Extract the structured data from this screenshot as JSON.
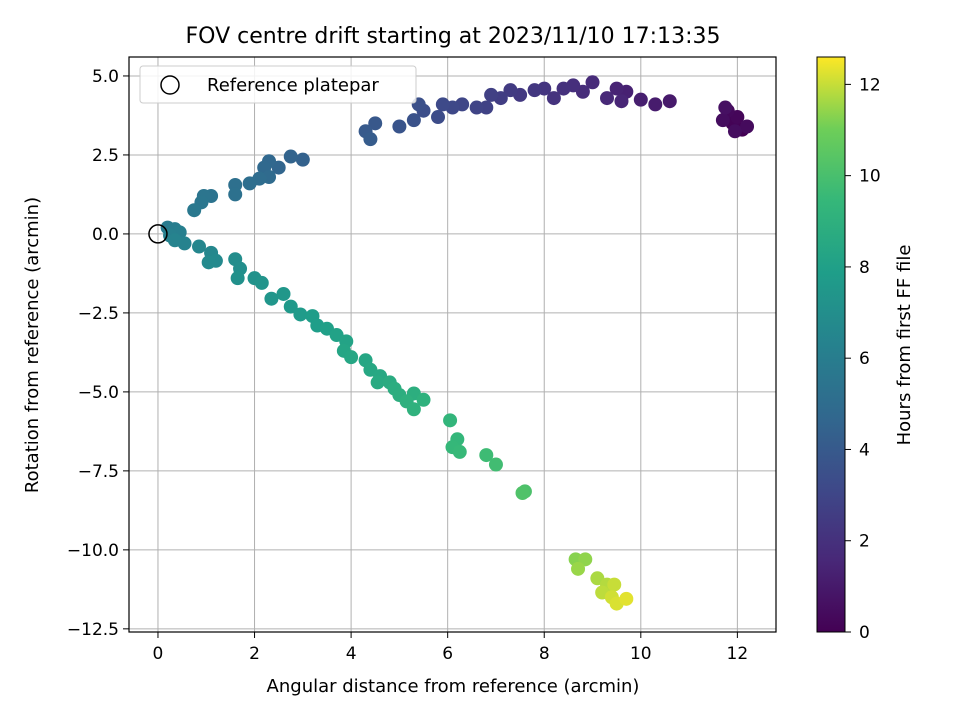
{
  "chart_data": {
    "type": "scatter",
    "title": "FOV centre drift starting at 2023/11/10 17:13:35",
    "xlabel": "Angular distance from reference (arcmin)",
    "ylabel": "Rotation from reference (arcmin)",
    "xlim": [
      -0.6,
      12.8
    ],
    "ylim": [
      -12.6,
      5.6
    ],
    "x_ticks": [
      0,
      2,
      4,
      6,
      8,
      10,
      12
    ],
    "y_ticks": [
      5.0,
      2.5,
      0.0,
      -2.5,
      -5.0,
      -7.5,
      -10.0,
      -12.5
    ],
    "x_tick_labels": [
      "0",
      "2",
      "4",
      "6",
      "8",
      "10",
      "12"
    ],
    "y_tick_labels": [
      "5.0",
      "2.5",
      "0.0",
      "−2.5",
      "−5.0",
      "−7.5",
      "−10.0",
      "−12.5"
    ],
    "grid": true,
    "legend": {
      "position": "top-left",
      "label": "Reference platepar",
      "marker": "open-circle"
    },
    "reference_point": {
      "x": 0,
      "y": 0
    },
    "colorbar": {
      "label": "Hours from first FF file",
      "range": [
        0,
        12.6
      ],
      "ticks": [
        0,
        2,
        4,
        6,
        8,
        10,
        12
      ],
      "tick_labels": [
        "0",
        "2",
        "4",
        "6",
        "8",
        "10",
        "12"
      ],
      "colormap": "viridis"
    },
    "points": [
      {
        "x": 12.1,
        "y": 3.3,
        "t": 0.0
      },
      {
        "x": 11.9,
        "y": 3.5,
        "t": 0.1
      },
      {
        "x": 12.0,
        "y": 3.7,
        "t": 0.2
      },
      {
        "x": 11.8,
        "y": 3.9,
        "t": 0.3
      },
      {
        "x": 12.2,
        "y": 3.4,
        "t": 0.4
      },
      {
        "x": 11.7,
        "y": 3.6,
        "t": 0.5
      },
      {
        "x": 11.95,
        "y": 3.25,
        "t": 0.5
      },
      {
        "x": 11.75,
        "y": 4.0,
        "t": 0.6
      },
      {
        "x": 10.6,
        "y": 4.2,
        "t": 1.0
      },
      {
        "x": 10.3,
        "y": 4.1,
        "t": 1.1
      },
      {
        "x": 10.0,
        "y": 4.25,
        "t": 1.2
      },
      {
        "x": 9.7,
        "y": 4.5,
        "t": 1.3
      },
      {
        "x": 9.5,
        "y": 4.6,
        "t": 1.4
      },
      {
        "x": 9.6,
        "y": 4.2,
        "t": 1.5
      },
      {
        "x": 9.3,
        "y": 4.3,
        "t": 1.6
      },
      {
        "x": 9.0,
        "y": 4.8,
        "t": 1.7
      },
      {
        "x": 8.8,
        "y": 4.5,
        "t": 1.8
      },
      {
        "x": 8.6,
        "y": 4.7,
        "t": 1.9
      },
      {
        "x": 8.4,
        "y": 4.6,
        "t": 2.0
      },
      {
        "x": 8.2,
        "y": 4.3,
        "t": 2.1
      },
      {
        "x": 8.0,
        "y": 4.6,
        "t": 2.2
      },
      {
        "x": 7.8,
        "y": 4.55,
        "t": 2.3
      },
      {
        "x": 7.5,
        "y": 4.4,
        "t": 2.4
      },
      {
        "x": 7.3,
        "y": 4.55,
        "t": 2.5
      },
      {
        "x": 7.1,
        "y": 4.3,
        "t": 2.6
      },
      {
        "x": 6.9,
        "y": 4.4,
        "t": 2.7
      },
      {
        "x": 6.8,
        "y": 4.0,
        "t": 2.8
      },
      {
        "x": 6.6,
        "y": 4.0,
        "t": 2.9
      },
      {
        "x": 6.3,
        "y": 4.1,
        "t": 3.0
      },
      {
        "x": 6.1,
        "y": 4.0,
        "t": 3.1
      },
      {
        "x": 5.9,
        "y": 4.1,
        "t": 3.2
      },
      {
        "x": 5.8,
        "y": 3.7,
        "t": 3.3
      },
      {
        "x": 5.5,
        "y": 3.9,
        "t": 3.4
      },
      {
        "x": 5.4,
        "y": 4.1,
        "t": 3.5
      },
      {
        "x": 5.3,
        "y": 3.6,
        "t": 3.6
      },
      {
        "x": 5.0,
        "y": 3.4,
        "t": 3.7
      },
      {
        "x": 4.5,
        "y": 3.5,
        "t": 3.9
      },
      {
        "x": 4.3,
        "y": 3.25,
        "t": 4.0
      },
      {
        "x": 4.4,
        "y": 3.0,
        "t": 4.1
      },
      {
        "x": 3.0,
        "y": 2.35,
        "t": 4.4
      },
      {
        "x": 2.75,
        "y": 2.45,
        "t": 4.5
      },
      {
        "x": 2.5,
        "y": 2.1,
        "t": 4.6
      },
      {
        "x": 2.3,
        "y": 2.3,
        "t": 4.7
      },
      {
        "x": 2.2,
        "y": 2.1,
        "t": 4.8
      },
      {
        "x": 2.3,
        "y": 1.8,
        "t": 4.9
      },
      {
        "x": 2.1,
        "y": 1.75,
        "t": 5.0
      },
      {
        "x": 1.9,
        "y": 1.6,
        "t": 5.1
      },
      {
        "x": 1.6,
        "y": 1.55,
        "t": 5.2
      },
      {
        "x": 1.6,
        "y": 1.25,
        "t": 5.3
      },
      {
        "x": 1.1,
        "y": 1.2,
        "t": 5.4
      },
      {
        "x": 0.95,
        "y": 1.2,
        "t": 5.5
      },
      {
        "x": 0.9,
        "y": 1.0,
        "t": 5.6
      },
      {
        "x": 0.75,
        "y": 0.75,
        "t": 5.7
      },
      {
        "x": 0.2,
        "y": 0.2,
        "t": 5.9
      },
      {
        "x": 0.35,
        "y": 0.15,
        "t": 6.0
      },
      {
        "x": 0.45,
        "y": 0.05,
        "t": 6.1
      },
      {
        "x": 0.25,
        "y": -0.05,
        "t": 6.2
      },
      {
        "x": 0.55,
        "y": -0.3,
        "t": 6.3
      },
      {
        "x": 0.35,
        "y": -0.2,
        "t": 6.35
      },
      {
        "x": 0.85,
        "y": -0.4,
        "t": 6.5
      },
      {
        "x": 1.1,
        "y": -0.6,
        "t": 6.6
      },
      {
        "x": 1.2,
        "y": -0.85,
        "t": 6.7
      },
      {
        "x": 1.05,
        "y": -0.9,
        "t": 6.75
      },
      {
        "x": 1.6,
        "y": -0.8,
        "t": 6.9
      },
      {
        "x": 1.7,
        "y": -1.1,
        "t": 7.0
      },
      {
        "x": 1.65,
        "y": -1.4,
        "t": 7.1
      },
      {
        "x": 2.0,
        "y": -1.4,
        "t": 7.2
      },
      {
        "x": 2.15,
        "y": -1.55,
        "t": 7.3
      },
      {
        "x": 2.35,
        "y": -2.05,
        "t": 7.4
      },
      {
        "x": 2.6,
        "y": -1.9,
        "t": 7.5
      },
      {
        "x": 2.75,
        "y": -2.3,
        "t": 7.6
      },
      {
        "x": 2.95,
        "y": -2.55,
        "t": 7.7
      },
      {
        "x": 3.2,
        "y": -2.6,
        "t": 7.8
      },
      {
        "x": 3.3,
        "y": -2.9,
        "t": 7.9
      },
      {
        "x": 3.5,
        "y": -3.0,
        "t": 8.0
      },
      {
        "x": 3.7,
        "y": -3.2,
        "t": 8.1
      },
      {
        "x": 3.9,
        "y": -3.4,
        "t": 8.2
      },
      {
        "x": 3.85,
        "y": -3.7,
        "t": 8.3
      },
      {
        "x": 4.0,
        "y": -3.9,
        "t": 8.35
      },
      {
        "x": 4.3,
        "y": -4.0,
        "t": 8.4
      },
      {
        "x": 4.4,
        "y": -4.3,
        "t": 8.45
      },
      {
        "x": 4.6,
        "y": -4.5,
        "t": 8.5
      },
      {
        "x": 4.55,
        "y": -4.7,
        "t": 8.6
      },
      {
        "x": 4.8,
        "y": -4.7,
        "t": 8.7
      },
      {
        "x": 4.9,
        "y": -4.9,
        "t": 8.8
      },
      {
        "x": 5.0,
        "y": -5.1,
        "t": 8.85
      },
      {
        "x": 5.3,
        "y": -5.05,
        "t": 8.9
      },
      {
        "x": 5.15,
        "y": -5.3,
        "t": 9.0
      },
      {
        "x": 5.5,
        "y": -5.25,
        "t": 9.05
      },
      {
        "x": 5.3,
        "y": -5.55,
        "t": 9.1
      },
      {
        "x": 6.05,
        "y": -5.9,
        "t": 9.3
      },
      {
        "x": 6.2,
        "y": -6.5,
        "t": 9.4
      },
      {
        "x": 6.1,
        "y": -6.75,
        "t": 9.45
      },
      {
        "x": 6.25,
        "y": -6.9,
        "t": 9.5
      },
      {
        "x": 6.8,
        "y": -7.0,
        "t": 9.7
      },
      {
        "x": 7.0,
        "y": -7.3,
        "t": 9.8
      },
      {
        "x": 7.6,
        "y": -8.15,
        "t": 10.1
      },
      {
        "x": 7.55,
        "y": -8.2,
        "t": 10.2
      },
      {
        "x": 8.65,
        "y": -10.3,
        "t": 11.3
      },
      {
        "x": 8.85,
        "y": -10.3,
        "t": 11.4
      },
      {
        "x": 8.7,
        "y": -10.6,
        "t": 11.5
      },
      {
        "x": 9.1,
        "y": -10.9,
        "t": 11.7
      },
      {
        "x": 9.3,
        "y": -11.1,
        "t": 11.8
      },
      {
        "x": 9.2,
        "y": -11.35,
        "t": 11.9
      },
      {
        "x": 9.45,
        "y": -11.1,
        "t": 12.0
      },
      {
        "x": 9.4,
        "y": -11.5,
        "t": 12.1
      },
      {
        "x": 9.5,
        "y": -11.7,
        "t": 12.2
      },
      {
        "x": 9.7,
        "y": -11.55,
        "t": 12.3
      }
    ]
  }
}
